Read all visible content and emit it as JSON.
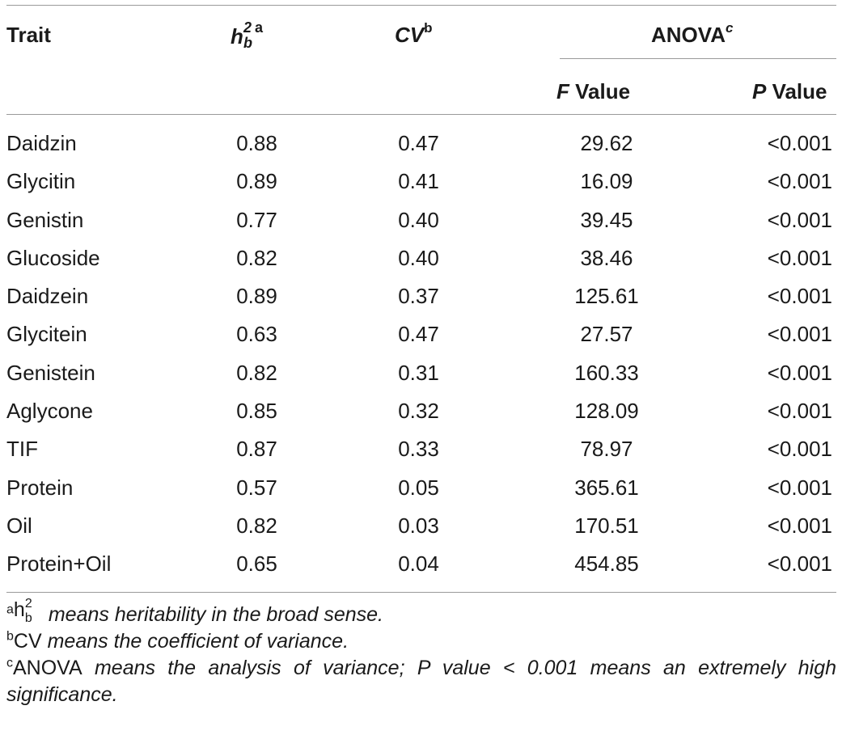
{
  "table": {
    "headers": {
      "trait": "Trait",
      "h2_base": "h",
      "h2_sup": "2",
      "h2_sub": "b",
      "h2_mark": "a",
      "cv_label": "CV",
      "cv_mark": "b",
      "anova_label": "ANOVA",
      "anova_mark": "c",
      "f_italic": "F",
      "f_rest": " Value",
      "p_italic": "P",
      "p_rest": " Value"
    },
    "rows": [
      {
        "trait": "Daidzin",
        "h2": "0.88",
        "cv": "0.47",
        "f": "29.62",
        "p": "<0.001"
      },
      {
        "trait": "Glycitin",
        "h2": "0.89",
        "cv": "0.41",
        "f": "16.09",
        "p": "<0.001"
      },
      {
        "trait": "Genistin",
        "h2": "0.77",
        "cv": "0.40",
        "f": "39.45",
        "p": "<0.001"
      },
      {
        "trait": "Glucoside",
        "h2": "0.82",
        "cv": "0.40",
        "f": "38.46",
        "p": "<0.001"
      },
      {
        "trait": "Daidzein",
        "h2": "0.89",
        "cv": "0.37",
        "f": "125.61",
        "p": "<0.001"
      },
      {
        "trait": "Glycitein",
        "h2": "0.63",
        "cv": "0.47",
        "f": "27.57",
        "p": "<0.001"
      },
      {
        "trait": "Genistein",
        "h2": "0.82",
        "cv": "0.31",
        "f": "160.33",
        "p": "<0.001"
      },
      {
        "trait": "Aglycone",
        "h2": "0.85",
        "cv": "0.32",
        "f": "128.09",
        "p": "<0.001"
      },
      {
        "trait": "TIF",
        "h2": "0.87",
        "cv": "0.33",
        "f": "78.97",
        "p": "<0.001"
      },
      {
        "trait": "Protein",
        "h2": "0.57",
        "cv": "0.05",
        "f": "365.61",
        "p": "<0.001"
      },
      {
        "trait": "Oil",
        "h2": "0.82",
        "cv": "0.03",
        "f": "170.51",
        "p": "<0.001"
      },
      {
        "trait": "Protein+Oil",
        "h2": "0.65",
        "cv": "0.04",
        "f": "454.85",
        "p": "<0.001"
      }
    ]
  },
  "footnotes": {
    "a_mark": "a",
    "a_sym_base": "h",
    "a_sym_sup": "2",
    "a_sym_sub": "b",
    "a_text": " means heritability in the broad sense.",
    "b_mark": "b",
    "b_sym": "CV",
    "b_text": " means the coefficient of variance.",
    "c_mark": "c",
    "c_sym": "ANOVA",
    "c_text": " means the analysis of variance; P value < 0.001 means an extremely high significance."
  }
}
